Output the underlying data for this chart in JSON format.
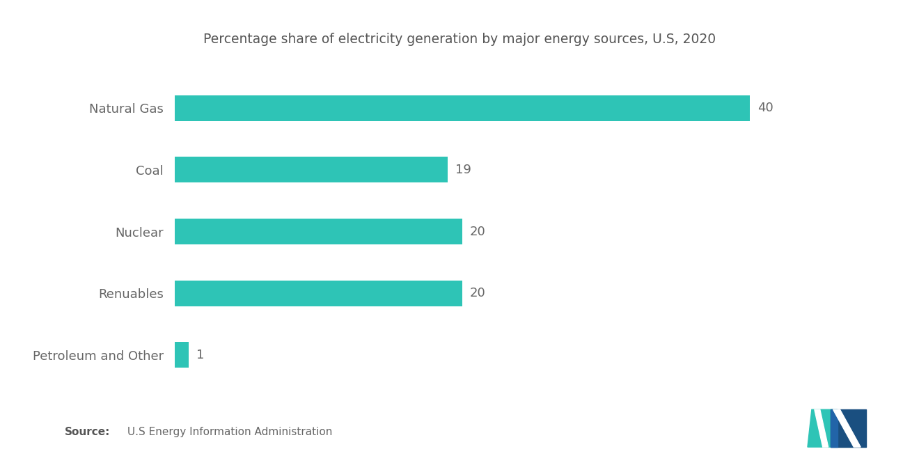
{
  "title": "Percentage share of electricity generation by major energy sources, U.S, 2020",
  "categories": [
    "Natural Gas",
    "Coal",
    "Nuclear",
    "Renuables",
    "Petroleum and Other"
  ],
  "values": [
    40,
    19,
    20,
    20,
    1
  ],
  "bar_color": "#2EC4B6",
  "bar_height": 0.42,
  "xlim": [
    0,
    46
  ],
  "label_fontsize": 13,
  "value_fontsize": 13,
  "title_fontsize": 13.5,
  "background_color": "#ffffff",
  "text_color": "#666666",
  "title_color": "#555555",
  "logo_teal": "#2EC4B6",
  "logo_blue": "#2264A8",
  "logo_dark_blue": "#1a4f80"
}
